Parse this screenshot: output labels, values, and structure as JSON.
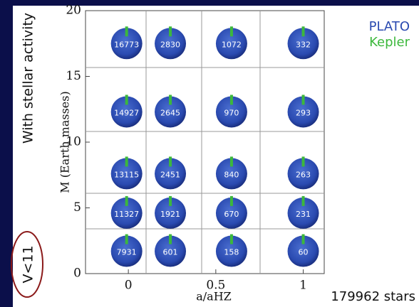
{
  "chart_data": {
    "type": "bubble-grid",
    "side_label": "With stellar activity",
    "corner_label": "V<11",
    "ylabel": "M (Earth masses)",
    "xlabel": "a/aHZ",
    "total_label": "179962 stars",
    "series": [
      {
        "name": "PLATO",
        "color": "#2a4ab0"
      },
      {
        "name": "Kepler",
        "color": "#3cb83c"
      }
    ],
    "x": [
      -0.01,
      0.24,
      0.59,
      1.0
    ],
    "y": [
      17.5,
      12.3,
      7.6,
      4.6,
      1.7
    ],
    "counts": [
      [
        "16773",
        "2830",
        "1072",
        "332"
      ],
      [
        "14927",
        "2645",
        "970",
        "293"
      ],
      [
        "13115",
        "2451",
        "840",
        "263"
      ],
      [
        "11327",
        "1921",
        "670",
        "231"
      ],
      [
        "7931",
        "601",
        "158",
        "60"
      ]
    ],
    "xlim": [
      -0.245,
      1.12
    ],
    "xticks": [
      0,
      0.5,
      1
    ],
    "ylim": [
      0,
      20
    ],
    "yticks": [
      0,
      5,
      10,
      15,
      20
    ]
  }
}
